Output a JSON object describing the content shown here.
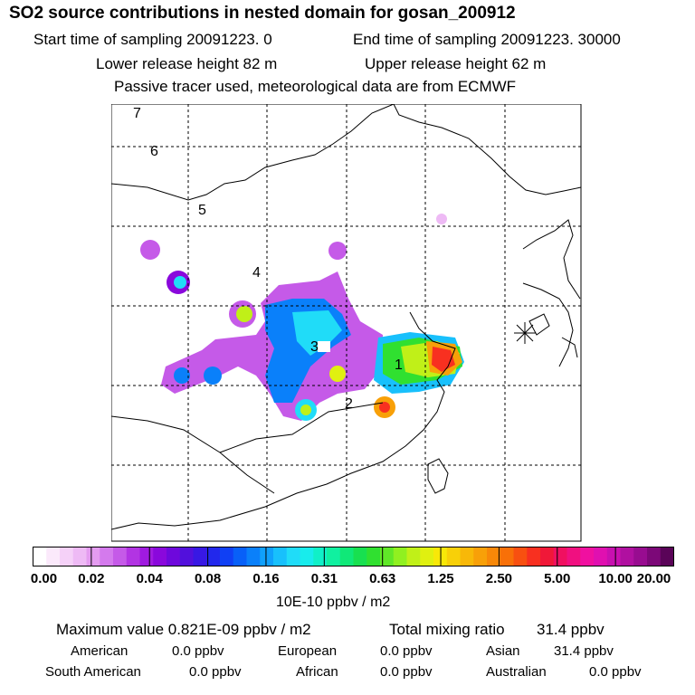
{
  "title": "SO2 source contributions in nested domain for gosan_200912",
  "sampling": {
    "start": "Start time of sampling 20091223.      0",
    "end": "End time of sampling 20091223. 30000"
  },
  "release": {
    "lower": "Lower release height   82 m",
    "upper": "Upper release height   62 m"
  },
  "note": "Passive tracer used, meteorological data are from ECMWF",
  "map": {
    "region_labels": [
      "1",
      "2",
      "3",
      "4",
      "5",
      "6",
      "7"
    ]
  },
  "colorbar": {
    "ticks": [
      "0.00",
      "0.02",
      "0.04",
      "0.08",
      "0.16",
      "0.31",
      "0.63",
      "1.25",
      "2.50",
      "5.00",
      "10.00",
      "20.00"
    ],
    "colors": [
      "#ffffff",
      "#fbe9fb",
      "#f5d1f8",
      "#eebaf5",
      "#e49cf0",
      "#d47aed",
      "#c55ae8",
      "#b234e3",
      "#a01ae0",
      "#8a08dc",
      "#6e08dc",
      "#5210dc",
      "#3818e4",
      "#2228ec",
      "#1040f4",
      "#0860f8",
      "#0a80fa",
      "#10a0fc",
      "#18c0fc",
      "#20dcf8",
      "#18ecec",
      "#10f0c8",
      "#10f0a0",
      "#10e878",
      "#18e050",
      "#30e030",
      "#60e828",
      "#90f020",
      "#c0f018",
      "#e0f010",
      "#f8e808",
      "#f8d008",
      "#f8b808",
      "#f8a008",
      "#f88808",
      "#f87008",
      "#f85010",
      "#f83020",
      "#f01838",
      "#f01060",
      "#f01080",
      "#f010a0",
      "#e010b0",
      "#c810b0",
      "#b010a0",
      "#980c90",
      "#7c0878",
      "#5a0458"
    ],
    "unit": "10E-10 ppbv / m2"
  },
  "stats": {
    "maximum": "Maximum value  0.821E-09 ppbv / m2",
    "total_label": "Total mixing ratio",
    "total_value": "31.4 ppbv",
    "regions": [
      {
        "name": "American",
        "value": "0.0 ppbv"
      },
      {
        "name": "European",
        "value": "0.0 ppbv"
      },
      {
        "name": "Asian",
        "value": "31.4 ppbv"
      },
      {
        "name": "South American",
        "value": "0.0 ppbv"
      },
      {
        "name": "African",
        "value": "0.0 ppbv"
      },
      {
        "name": "Australian",
        "value": "0.0 ppbv"
      }
    ]
  }
}
